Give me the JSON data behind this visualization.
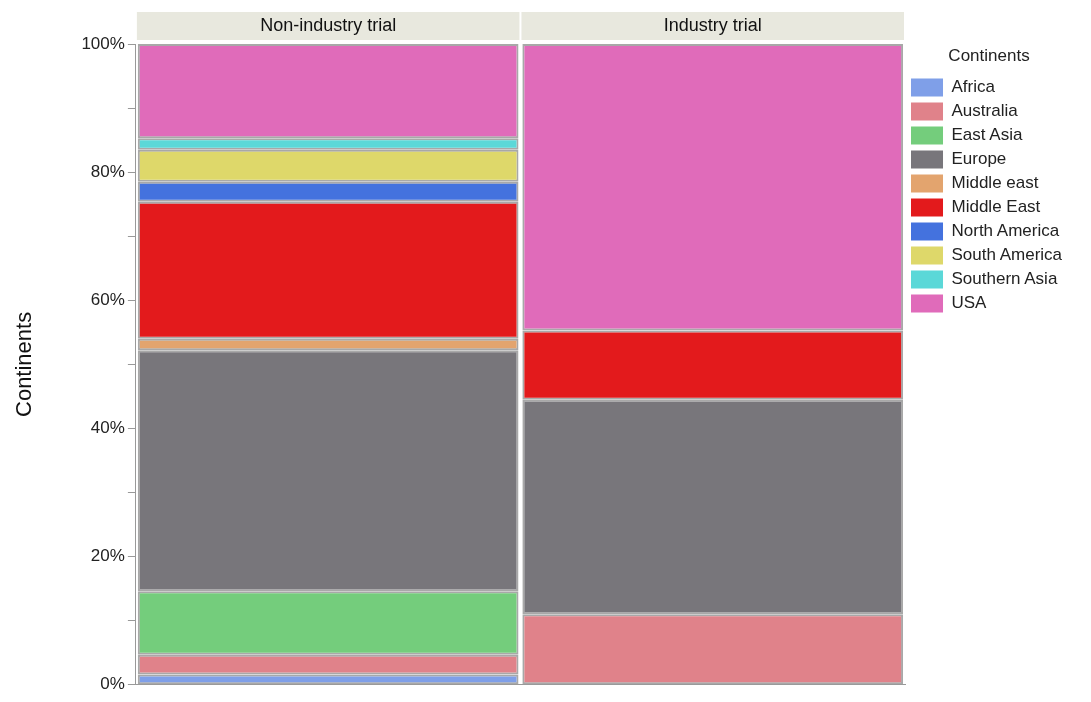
{
  "chart_data": {
    "type": "bar",
    "stacked": true,
    "ylabel": "Continents",
    "legend_title": "Continents",
    "legend": "top right",
    "grid": false,
    "categories": [
      "Non-industry trial",
      "Industry trial"
    ],
    "ylim": [
      0,
      100
    ],
    "yticks": [
      {
        "value": 0,
        "label": "0%"
      },
      {
        "value": 10,
        "label": null
      },
      {
        "value": 20,
        "label": "20%"
      },
      {
        "value": 30,
        "label": null
      },
      {
        "value": 40,
        "label": "40%"
      },
      {
        "value": 50,
        "label": null
      },
      {
        "value": 60,
        "label": "60%"
      },
      {
        "value": 70,
        "label": null
      },
      {
        "value": 80,
        "label": "80%"
      },
      {
        "value": 90,
        "label": null
      },
      {
        "value": 100,
        "label": "100%"
      }
    ],
    "series": [
      {
        "name": "Africa",
        "color": "#7f9fe8",
        "values": [
          1.6,
          0
        ]
      },
      {
        "name": "Australia",
        "color": "#e0828a",
        "values": [
          3.1,
          11.0
        ]
      },
      {
        "name": "East Asia",
        "color": "#74cd7c",
        "values": [
          9.9,
          0
        ]
      },
      {
        "name": "Europe",
        "color": "#78767b",
        "values": [
          37.6,
          33.5
        ]
      },
      {
        "name": "Middle east",
        "color": "#e3a46e",
        "values": [
          1.8,
          0
        ]
      },
      {
        "name": "Middle East",
        "color": "#e31a1c",
        "values": [
          21.4,
          10.8
        ]
      },
      {
        "name": "North America",
        "color": "#4472de",
        "values": [
          3.1,
          0
        ]
      },
      {
        "name": "South America",
        "color": "#ded86a",
        "values": [
          5.0,
          0
        ]
      },
      {
        "name": "Southern Asia",
        "color": "#5bd8d8",
        "values": [
          1.8,
          0
        ]
      },
      {
        "name": "USA",
        "color": "#e06bba",
        "values": [
          14.7,
          44.7
        ]
      }
    ]
  }
}
